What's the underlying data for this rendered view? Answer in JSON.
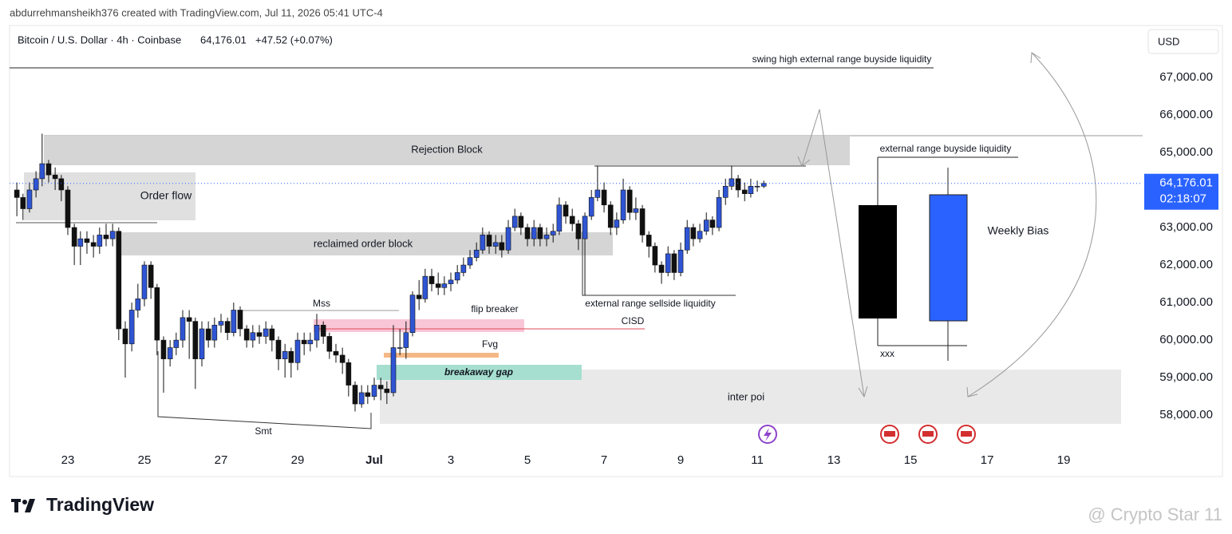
{
  "header": {
    "credit": "abdurrehmansheikh376 created with TradingView.com, Jul 11, 2026 05:41 UTC-4"
  },
  "chart_data": {
    "type": "candlestick",
    "title": "Bitcoin / U.S. Dollar · 4h · Coinbase",
    "last_price_label": "64,176.01",
    "change_label": "+47.52 (+0.07%)",
    "countdown": "02:18:07",
    "currency": "USD",
    "up_color": "#2f55d4",
    "down_color": "#111111",
    "grid": false,
    "x": [
      21.67,
      21.83,
      22,
      22.17,
      22.33,
      22.5,
      22.67,
      22.83,
      23,
      23.17,
      23.33,
      23.5,
      23.67,
      23.83,
      24,
      24.17,
      24.33,
      24.5,
      24.67,
      24.83,
      25,
      25.17,
      25.33,
      25.5,
      25.67,
      25.83,
      26,
      26.17,
      26.33,
      26.5,
      26.67,
      26.83,
      27,
      27.17,
      27.33,
      27.5,
      27.67,
      27.83,
      28,
      28.17,
      28.33,
      28.5,
      28.67,
      28.83,
      29,
      29.17,
      29.33,
      29.5,
      29.67,
      29.83,
      30,
      30.17,
      30.33,
      30.5,
      30.67,
      30.83,
      31,
      31.17,
      31.33,
      31.5,
      31.67,
      31.83,
      32,
      32.17,
      32.33,
      32.5,
      32.67,
      32.83,
      33,
      33.17,
      33.33,
      33.5,
      33.67,
      33.83,
      34,
      34.17,
      34.33,
      34.5,
      34.67,
      34.83,
      35,
      35.17,
      35.33,
      35.5,
      35.67,
      35.83,
      36,
      36.17,
      36.33,
      36.5,
      36.67,
      36.83,
      37,
      37.17,
      37.33,
      37.5,
      37.67,
      37.83,
      38,
      38.17,
      38.33,
      38.5,
      38.67,
      38.83,
      39,
      39.17,
      39.33,
      39.5,
      39.67,
      39.83,
      40,
      40.17,
      40.33,
      40.5,
      40.67,
      40.83,
      41,
      41.17
    ],
    "open": [
      64000,
      63800,
      63500,
      64000,
      64300,
      64700,
      64400,
      64300,
      64000,
      63000,
      62500,
      62700,
      62600,
      62500,
      62800,
      62700,
      62900,
      60300,
      59900,
      60800,
      61100,
      62000,
      61400,
      60000,
      59500,
      59800,
      60000,
      60600,
      60500,
      59500,
      60300,
      60000,
      60400,
      60500,
      60200,
      60800,
      60300,
      60000,
      60200,
      60100,
      60300,
      60000,
      59500,
      59700,
      59400,
      60000,
      59900,
      60000,
      60400,
      60100,
      59700,
      59600,
      59400,
      58800,
      58300,
      58600,
      58500,
      58800,
      58700,
      58600,
      59800,
      59800,
      60200,
      61200,
      61100,
      61700,
      61500,
      61400,
      61500,
      61600,
      61800,
      62000,
      62200,
      62400,
      62800,
      62500,
      62600,
      62400,
      63000,
      63300,
      63000,
      62700,
      63000,
      62700,
      62800,
      62900,
      63600,
      63300,
      63100,
      62700,
      63300,
      63800,
      64000,
      63600,
      63000,
      63200,
      64000,
      63400,
      63500,
      62800,
      62500,
      62000,
      61800,
      62300,
      61800,
      62400,
      63000,
      62700,
      62900,
      63200,
      63000,
      63800,
      64100,
      64300,
      64000,
      63900,
      64100,
      64100
    ],
    "high": [
      64200,
      63900,
      64200,
      64500,
      65500,
      64800,
      64600,
      64400,
      64100,
      63100,
      62900,
      62900,
      62800,
      63000,
      63100,
      63100,
      63000,
      60500,
      61000,
      61500,
      62100,
      62100,
      61500,
      60100,
      60000,
      60200,
      60800,
      60800,
      60600,
      60500,
      60500,
      60600,
      60700,
      60600,
      61000,
      60900,
      60400,
      60400,
      60400,
      60500,
      60400,
      60100,
      59900,
      59800,
      60200,
      60200,
      60200,
      60700,
      60500,
      60200,
      59900,
      59800,
      59500,
      58900,
      58800,
      58800,
      59000,
      59000,
      58900,
      60400,
      60300,
      60500,
      61300,
      61600,
      61900,
      61900,
      61800,
      61700,
      61800,
      62000,
      62200,
      62400,
      62600,
      63000,
      62900,
      62800,
      62800,
      63200,
      63500,
      63400,
      63100,
      63200,
      63100,
      63000,
      63100,
      63800,
      63700,
      63500,
      63200,
      63400,
      64000,
      64650,
      64200,
      63700,
      63400,
      64300,
      64100,
      63800,
      63600,
      62900,
      62600,
      62100,
      62500,
      62400,
      62600,
      63200,
      63100,
      63100,
      63400,
      63300,
      64000,
      64300,
      64650,
      64400,
      64200,
      64300,
      64250,
      64250
    ],
    "low": [
      63300,
      63200,
      63400,
      63800,
      64100,
      64200,
      64000,
      63700,
      62800,
      62000,
      62000,
      62300,
      62200,
      62300,
      62500,
      62500,
      60000,
      59000,
      59700,
      60600,
      60900,
      61100,
      59600,
      58600,
      59300,
      59600,
      59800,
      59500,
      58700,
      59300,
      59800,
      59800,
      60200,
      60000,
      60100,
      60100,
      59800,
      59800,
      59900,
      59900,
      59700,
      59200,
      59000,
      59000,
      59200,
      59600,
      59700,
      59800,
      59900,
      59500,
      59400,
      59100,
      58500,
      58100,
      58200,
      58300,
      58400,
      58400,
      58300,
      58500,
      59600,
      59500,
      60100,
      60800,
      61000,
      61300,
      61200,
      61200,
      61300,
      61500,
      61700,
      61900,
      62100,
      62300,
      62300,
      62300,
      62200,
      62300,
      62900,
      62800,
      62500,
      62500,
      62500,
      62500,
      62600,
      62800,
      63100,
      62900,
      62400,
      61200,
      63200,
      63700,
      63400,
      62800,
      62800,
      63100,
      63200,
      63200,
      62600,
      62200,
      61800,
      61500,
      61700,
      61600,
      61700,
      62300,
      62500,
      62600,
      62800,
      62800,
      62900,
      63600,
      64000,
      63800,
      63700,
      63800,
      63950,
      64050
    ],
    "close": [
      63800,
      63500,
      64000,
      64300,
      64700,
      64400,
      64300,
      64000,
      63000,
      62500,
      62700,
      62600,
      62500,
      62800,
      62700,
      62900,
      60300,
      59900,
      60800,
      61100,
      62000,
      61400,
      60000,
      59500,
      59800,
      60000,
      60600,
      60500,
      59500,
      60300,
      60000,
      60400,
      60500,
      60200,
      60800,
      60300,
      60000,
      60200,
      60100,
      60300,
      60000,
      59500,
      59700,
      59400,
      60000,
      59900,
      60000,
      60400,
      60100,
      59700,
      59600,
      59400,
      58800,
      58300,
      58600,
      58500,
      58800,
      58700,
      58600,
      59800,
      59800,
      60200,
      61200,
      61100,
      61700,
      61500,
      61400,
      61500,
      61600,
      61800,
      62000,
      62200,
      62400,
      62800,
      62500,
      62600,
      62400,
      63000,
      63300,
      63000,
      62700,
      63000,
      62700,
      62800,
      62900,
      63600,
      63300,
      63100,
      62700,
      63300,
      63800,
      64000,
      63600,
      63000,
      63200,
      64000,
      63400,
      63500,
      62800,
      62500,
      62000,
      61800,
      62300,
      61800,
      62400,
      63000,
      62700,
      62900,
      63200,
      63000,
      63800,
      64100,
      64300,
      64000,
      63900,
      64100,
      64100,
      64176.01
    ],
    "xlim": [
      21.48,
      51.06
    ],
    "xticks": [
      23,
      25,
      27,
      29,
      {
        "value": 31,
        "label": "Jul"
      },
      {
        "value": 33,
        "label": "3"
      },
      {
        "value": 35,
        "label": "5"
      },
      {
        "value": 37,
        "label": "7"
      },
      {
        "value": 39,
        "label": "9"
      },
      {
        "value": 41,
        "label": "11"
      },
      {
        "value": 43,
        "label": "13"
      },
      {
        "value": 45,
        "label": "15"
      },
      {
        "value": 47,
        "label": "17"
      },
      {
        "value": 49,
        "label": "19"
      }
    ],
    "ylim": [
      56983,
      68380
    ],
    "yticks": [
      {
        "value": 58000,
        "label": "58,000.00"
      },
      {
        "value": 59000,
        "label": "59,000.00"
      },
      {
        "value": 60000,
        "label": "60,000.00"
      },
      {
        "value": 61000,
        "label": "61,000.00"
      },
      {
        "value": 62000,
        "label": "62,000.00"
      },
      {
        "value": 63000,
        "label": "63,000.00"
      },
      {
        "value": 65000,
        "label": "65,000.00"
      },
      {
        "value": 66000,
        "label": "66,000.00"
      },
      {
        "value": 67000,
        "label": "67,000.00"
      }
    ]
  },
  "annotations": {
    "swing_high": "swing high external range buyside liquidity",
    "rejection_block": "Rejection Block",
    "order_flow": "Order flow",
    "reclaimed_order_block": "reclaimed order block",
    "mss": "Mss",
    "flip_breaker": "flip  breaker",
    "cisd": "CISD",
    "fvg": "Fvg",
    "breakaway_gap": "breakaway gap",
    "smt": "Smt",
    "sellside": "external range sellside liquidity",
    "inter_poi": "inter poi",
    "buyside": "external range buyside liquidity",
    "weekly_bias": "Weekly Bias",
    "xxx": "xxx"
  },
  "footer": {
    "logo": "TradingView",
    "watermark": "@ Crypto Star 11"
  }
}
